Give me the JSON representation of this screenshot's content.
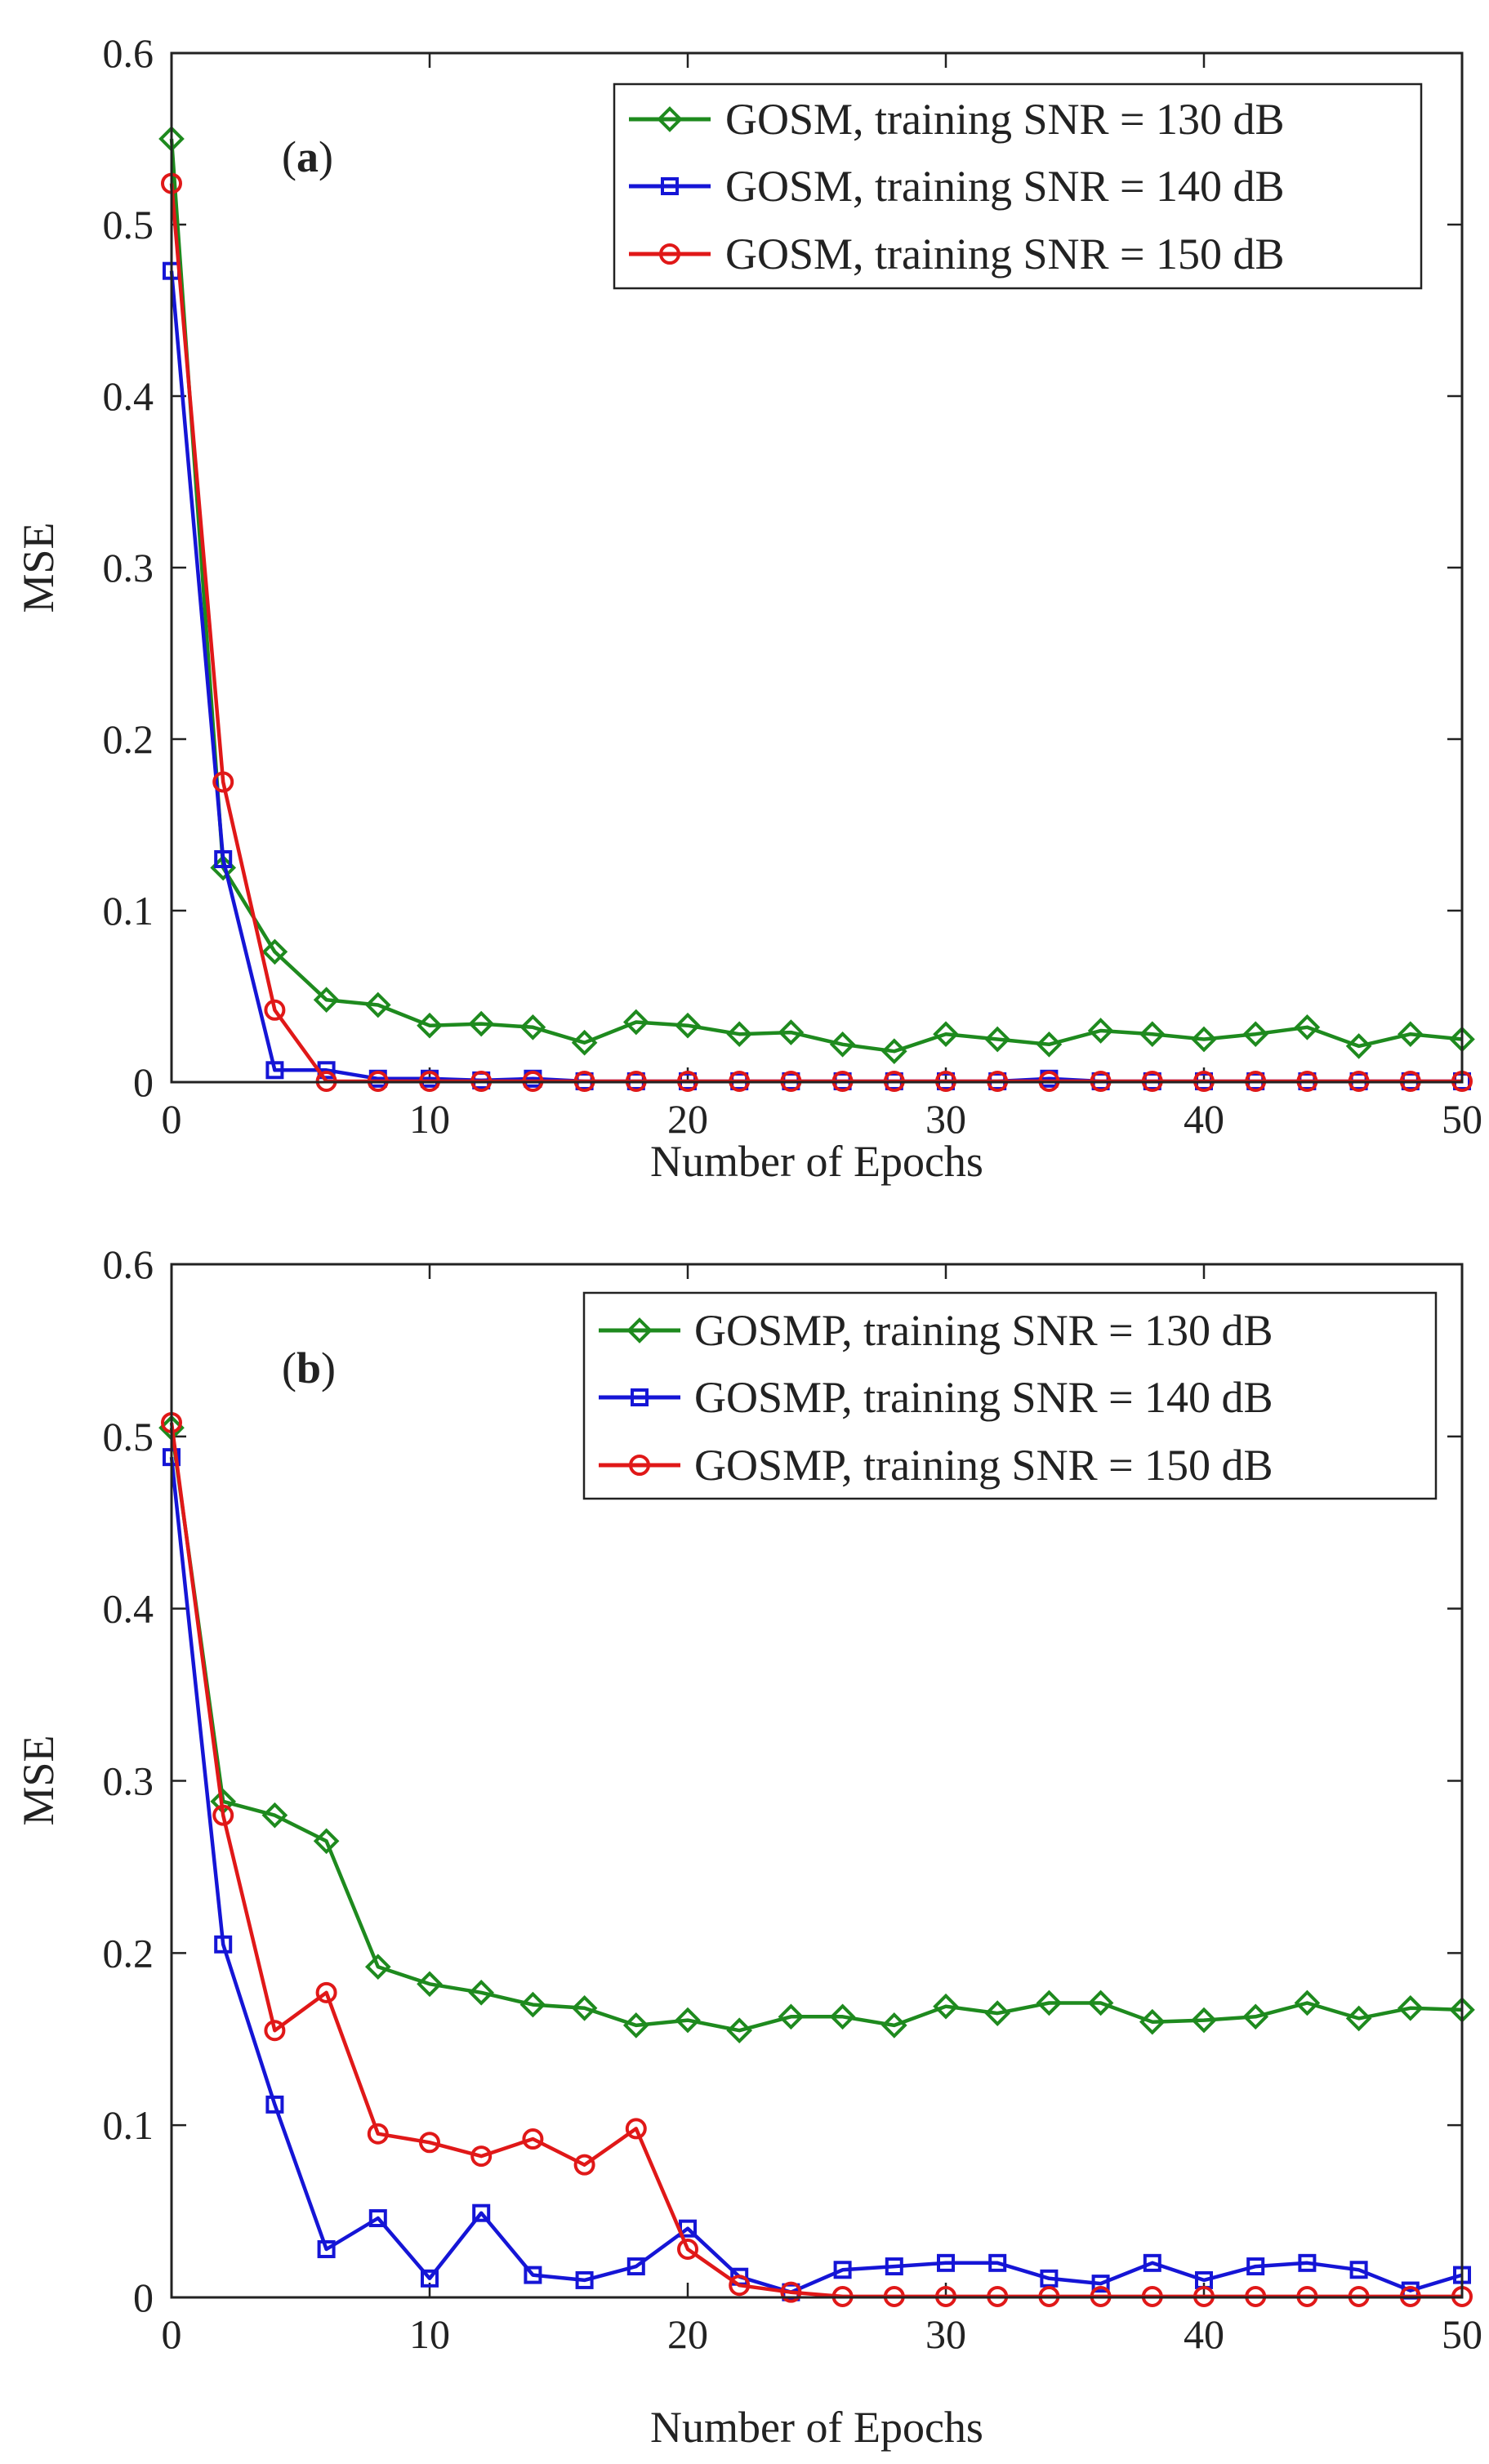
{
  "chart_data": [
    {
      "type": "line",
      "panel_label": "a",
      "title": "",
      "xlabel": "Number of Epochs",
      "ylabel": "MSE",
      "xlim": [
        0,
        50
      ],
      "ylim": [
        0,
        0.6
      ],
      "xticks": [
        "0",
        "10",
        "20",
        "30",
        "40",
        "50"
      ],
      "yticks": [
        "0",
        "0.1",
        "0.2",
        "0.3",
        "0.4",
        "0.5",
        "0.6"
      ],
      "grid": false,
      "legend_position": "top-right",
      "x": [
        0,
        2,
        4,
        6,
        8,
        10,
        12,
        14,
        16,
        18,
        20,
        22,
        24,
        26,
        28,
        30,
        32,
        34,
        36,
        38,
        40,
        42,
        44,
        46,
        48,
        50
      ],
      "series": [
        {
          "name": "GOSM, training SNR = 130 dB",
          "color": "#1e8a1e",
          "marker": "diamond",
          "values": [
            0.55,
            0.125,
            0.076,
            0.048,
            0.045,
            0.033,
            0.034,
            0.032,
            0.023,
            0.035,
            0.033,
            0.028,
            0.029,
            0.022,
            0.018,
            0.028,
            0.025,
            0.022,
            0.03,
            0.028,
            0.025,
            0.028,
            0.032,
            0.021,
            0.028,
            0.025
          ]
        },
        {
          "name": "GOSM, training SNR = 140 dB",
          "color": "#1515d6",
          "marker": "square",
          "values": [
            0.473,
            0.13,
            0.007,
            0.007,
            0.002,
            0.002,
            0.001,
            0.002,
            0.0005,
            0.0005,
            0.0005,
            0.0005,
            0.0005,
            0.0005,
            0.0005,
            0.0005,
            0.0005,
            0.002,
            0.0005,
            0.0005,
            0.0005,
            0.0005,
            0.0005,
            0.0005,
            0.0005,
            0.0005
          ]
        },
        {
          "name": "GOSM, training SNR = 150 dB",
          "color": "#e01818",
          "marker": "circle",
          "values": [
            0.524,
            0.175,
            0.042,
            0.0005,
            0.0005,
            0.0005,
            0.0005,
            0.0005,
            0.0005,
            0.0005,
            0.0005,
            0.0005,
            0.0005,
            0.0005,
            0.0005,
            0.0005,
            0.0005,
            0.0005,
            0.0005,
            0.0005,
            0.0005,
            0.0005,
            0.0005,
            0.0005,
            0.0005,
            0.0005
          ]
        }
      ]
    },
    {
      "type": "line",
      "panel_label": "b",
      "title": "",
      "xlabel": "Number of Epochs",
      "ylabel": "MSE",
      "xlim": [
        0,
        50
      ],
      "ylim": [
        0,
        0.6
      ],
      "xticks": [
        "0",
        "10",
        "20",
        "30",
        "40",
        "50"
      ],
      "yticks": [
        "0",
        "0.1",
        "0.2",
        "0.3",
        "0.4",
        "0.5",
        "0.6"
      ],
      "grid": false,
      "legend_position": "top-right",
      "x": [
        0,
        2,
        4,
        6,
        8,
        10,
        12,
        14,
        16,
        18,
        20,
        22,
        24,
        26,
        28,
        30,
        32,
        34,
        36,
        38,
        40,
        42,
        44,
        46,
        48,
        50
      ],
      "series": [
        {
          "name": "GOSMP, training SNR = 130 dB",
          "color": "#1e8a1e",
          "marker": "diamond",
          "values": [
            0.505,
            0.288,
            0.28,
            0.265,
            0.192,
            0.182,
            0.177,
            0.17,
            0.168,
            0.158,
            0.161,
            0.155,
            0.163,
            0.163,
            0.158,
            0.169,
            0.165,
            0.171,
            0.171,
            0.16,
            0.161,
            0.163,
            0.171,
            0.162,
            0.168,
            0.167
          ]
        },
        {
          "name": "GOSMP, training SNR = 140 dB",
          "color": "#1515d6",
          "marker": "square",
          "values": [
            0.488,
            0.205,
            0.112,
            0.028,
            0.046,
            0.011,
            0.049,
            0.013,
            0.01,
            0.018,
            0.04,
            0.012,
            0.003,
            0.016,
            0.018,
            0.02,
            0.02,
            0.011,
            0.008,
            0.02,
            0.01,
            0.018,
            0.02,
            0.016,
            0.004,
            0.013
          ]
        },
        {
          "name": "GOSMP, training SNR = 150 dB",
          "color": "#e01818",
          "marker": "circle",
          "values": [
            0.508,
            0.28,
            0.155,
            0.177,
            0.095,
            0.09,
            0.082,
            0.092,
            0.077,
            0.098,
            0.028,
            0.007,
            0.003,
            0.0005,
            0.0005,
            0.0005,
            0.0005,
            0.0005,
            0.0005,
            0.0005,
            0.0005,
            0.0005,
            0.0005,
            0.0005,
            0.0005,
            0.0005
          ]
        }
      ]
    }
  ]
}
